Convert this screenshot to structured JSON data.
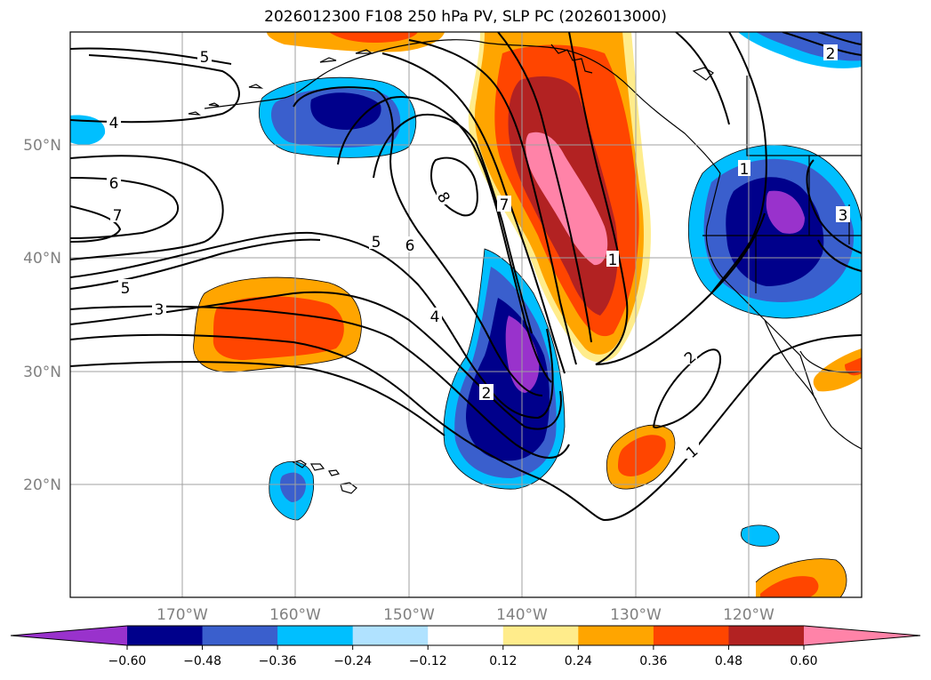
{
  "title": "2026012300 F108 250 hPa PV, SLP PC (2026013000)",
  "map": {
    "lat_labels": [
      {
        "lat": 50,
        "label": "50°N"
      },
      {
        "lat": 40,
        "label": "40°N"
      },
      {
        "lat": 30,
        "label": "30°N"
      },
      {
        "lat": 20,
        "label": "20°N"
      }
    ],
    "lon_labels": [
      {
        "lon": -170,
        "label": "170°W"
      },
      {
        "lon": -160,
        "label": "160°W"
      },
      {
        "lon": -150,
        "label": "150°W"
      },
      {
        "lon": -140,
        "label": "140°W"
      },
      {
        "lon": -130,
        "label": "130°W"
      },
      {
        "lon": -120,
        "label": "120°W"
      }
    ],
    "contour_labels": [
      "5",
      "4",
      "6",
      "7",
      "5",
      "3",
      "8",
      "5",
      "6",
      "4",
      "7",
      "1",
      "2",
      "1",
      "2",
      "3",
      "2",
      "1"
    ]
  },
  "colorbar": {
    "colors": [
      "#9932cc",
      "#00008b",
      "#3a5fcd",
      "#00bfff",
      "#b0e2ff",
      "#ffffff",
      "#ffec8b",
      "#ffa500",
      "#ff4500",
      "#b22222",
      "#ff83a8"
    ],
    "ticks": [
      "−0.60",
      "−0.48",
      "−0.36",
      "−0.24",
      "−0.12",
      "0.12",
      "0.24",
      "0.36",
      "0.48",
      "0.60"
    ]
  }
}
